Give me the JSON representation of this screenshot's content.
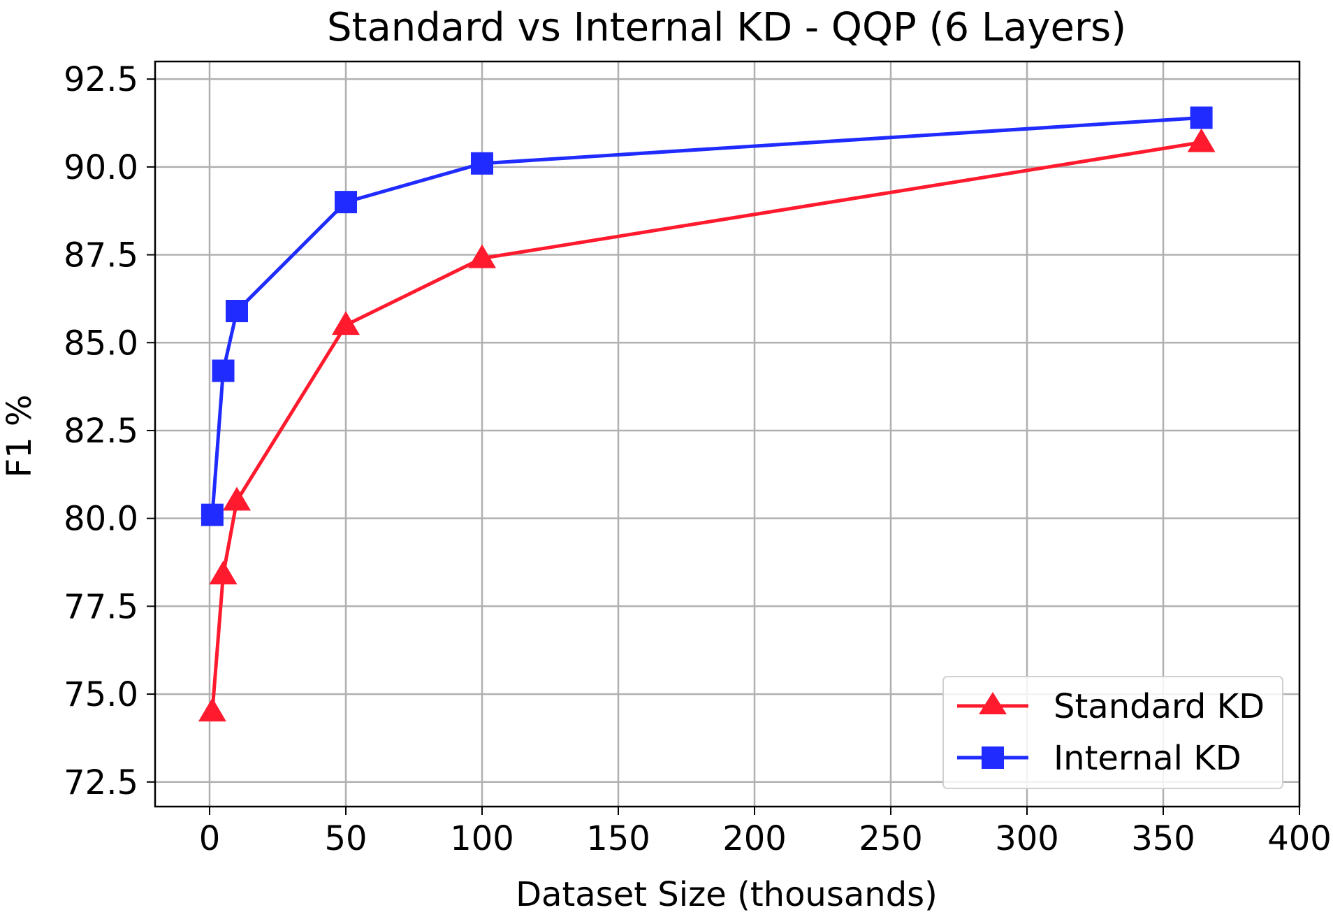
{
  "chart_data": {
    "type": "line",
    "title": "Standard vs Internal KD - QQP (6 Layers)",
    "xlabel": "Dataset Size (thousands)",
    "ylabel": "F1 %",
    "xlim": [
      -20,
      400
    ],
    "ylim": [
      71.8,
      93.0
    ],
    "xticks": [
      0,
      50,
      100,
      150,
      200,
      250,
      300,
      350,
      400
    ],
    "yticks": [
      72.5,
      75.0,
      77.5,
      80.0,
      82.5,
      85.0,
      87.5,
      90.0,
      92.5
    ],
    "xtick_labels": [
      "0",
      "50",
      "100",
      "150",
      "200",
      "250",
      "300",
      "350",
      "400"
    ],
    "ytick_labels": [
      "72.5",
      "75.0",
      "77.5",
      "80.0",
      "82.5",
      "85.0",
      "87.5",
      "90.0",
      "92.5"
    ],
    "grid": true,
    "legend_position": "bottom-right",
    "series": [
      {
        "name": "Standard KD",
        "color": "#ff1a2e",
        "marker": "triangle",
        "x": [
          1,
          5,
          10,
          50,
          100,
          364
        ],
        "y": [
          74.5,
          78.4,
          80.5,
          85.5,
          87.4,
          90.7
        ]
      },
      {
        "name": "Internal KD",
        "color": "#1f2bff",
        "marker": "square",
        "x": [
          1,
          5,
          10,
          50,
          100,
          364
        ],
        "y": [
          80.1,
          84.2,
          85.9,
          89.0,
          90.1,
          91.4
        ]
      }
    ]
  }
}
